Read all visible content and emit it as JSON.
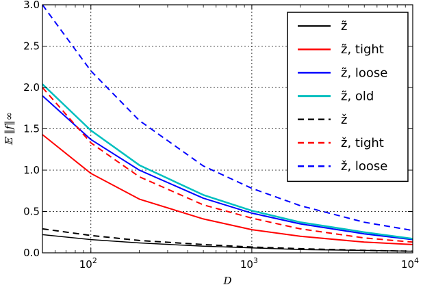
{
  "chart_data": {
    "type": "line",
    "xlabel": "D",
    "ylabel": "𝔼 ‖f‖∞",
    "xscale": "log",
    "xlim": [
      50,
      10000
    ],
    "ylim": [
      0,
      3.0
    ],
    "grid": true,
    "legend_position": "top-right",
    "xticks": [
      {
        "value": 100,
        "label": "10",
        "exp": "2"
      },
      {
        "value": 1000,
        "label": "10",
        "exp": "3"
      },
      {
        "value": 10000,
        "label": "10",
        "exp": "4"
      }
    ],
    "yticks": [
      {
        "value": 0.0,
        "label": "0.0"
      },
      {
        "value": 0.5,
        "label": "0.5"
      },
      {
        "value": 1.0,
        "label": "1.0"
      },
      {
        "value": 1.5,
        "label": "1.5"
      },
      {
        "value": 2.0,
        "label": "2.0"
      },
      {
        "value": 2.5,
        "label": "2.5"
      },
      {
        "value": 3.0,
        "label": "3.0"
      }
    ],
    "x": [
      50,
      100,
      200,
      500,
      1000,
      2000,
      5000,
      10000
    ],
    "series": [
      {
        "name": "z̃",
        "color": "#000000",
        "dash": "solid",
        "width": 1.5,
        "values": [
          0.22,
          0.16,
          0.12,
          0.08,
          0.06,
          0.04,
          0.03,
          0.02
        ]
      },
      {
        "name": "z̃, tight",
        "color": "#ff0000",
        "dash": "solid",
        "width": 2,
        "values": [
          1.43,
          0.96,
          0.65,
          0.41,
          0.28,
          0.2,
          0.13,
          0.1
        ]
      },
      {
        "name": "z̃, loose",
        "color": "#0000ff",
        "dash": "solid",
        "width": 2,
        "values": [
          1.9,
          1.37,
          1.0,
          0.66,
          0.48,
          0.35,
          0.23,
          0.16
        ]
      },
      {
        "name": "z̃, old",
        "color": "#00bfbf",
        "dash": "solid",
        "width": 2.5,
        "values": [
          2.04,
          1.48,
          1.06,
          0.7,
          0.51,
          0.37,
          0.25,
          0.17
        ]
      },
      {
        "name": "ž",
        "color": "#000000",
        "dash": "dashed",
        "width": 2,
        "values": [
          0.29,
          0.21,
          0.15,
          0.1,
          0.07,
          0.05,
          0.03,
          0.02
        ]
      },
      {
        "name": "ž, tight",
        "color": "#ff0000",
        "dash": "dashed",
        "width": 2,
        "values": [
          2.0,
          1.33,
          0.92,
          0.58,
          0.42,
          0.29,
          0.18,
          0.13
        ]
      },
      {
        "name": "ž, loose",
        "color": "#0000ff",
        "dash": "dashed",
        "width": 2,
        "values": [
          3.0,
          2.2,
          1.6,
          1.05,
          0.78,
          0.57,
          0.37,
          0.27
        ]
      }
    ]
  }
}
